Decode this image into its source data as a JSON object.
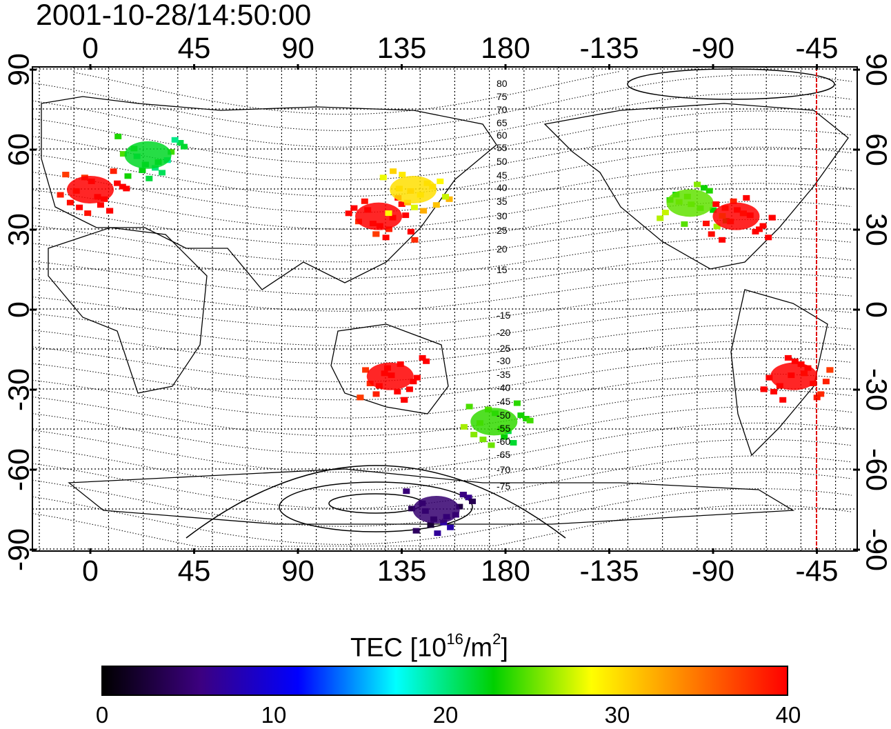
{
  "map": {
    "timestamp": "2001-10-28/14:50:00",
    "longitude_ticks": [
      "0",
      "45",
      "90",
      "135",
      "180",
      "-135",
      "-90",
      "-45"
    ],
    "latitude_ticks": [
      "90",
      "60",
      "30",
      "0",
      "-30",
      "-60",
      "-90"
    ],
    "contour_labels": [
      "80",
      "75",
      "70",
      "65",
      "60",
      "55",
      "50",
      "45",
      "40",
      "35",
      "30",
      "25",
      "20",
      "15",
      "-15",
      "-20",
      "-25",
      "-30",
      "-35",
      "-40",
      "-45",
      "-50",
      "-55",
      "-60",
      "-65",
      "-70",
      "-75"
    ],
    "terminator_line_color": "#e00000",
    "tec_patches": [
      {
        "lon": 0,
        "lat": 45,
        "tec": 40
      },
      {
        "lon": 25,
        "lat": 58,
        "tec": 22
      },
      {
        "lon": 125,
        "lat": 35,
        "tec": 40
      },
      {
        "lon": 140,
        "lat": 45,
        "tec": 30
      },
      {
        "lon": -100,
        "lat": 40,
        "tec": 25
      },
      {
        "lon": -80,
        "lat": 35,
        "tec": 40
      },
      {
        "lon": -55,
        "lat": -25,
        "tec": 40
      },
      {
        "lon": 130,
        "lat": -25,
        "tec": 40
      },
      {
        "lon": 175,
        "lat": -42,
        "tec": 24
      },
      {
        "lon": 150,
        "lat": -75,
        "tec": 5
      }
    ]
  },
  "colorbar": {
    "title_main": "TEC  [10",
    "title_exp1": "16",
    "title_mid": "/m",
    "title_exp2": "2",
    "title_end": "]",
    "ticks": [
      "0",
      "10",
      "20",
      "30",
      "40"
    ],
    "range": [
      0,
      40
    ],
    "colors": [
      "#000000",
      "#3c0080",
      "#0000ff",
      "#00ffff",
      "#00d000",
      "#ffff00",
      "#ff8000",
      "#ff0000"
    ]
  }
}
